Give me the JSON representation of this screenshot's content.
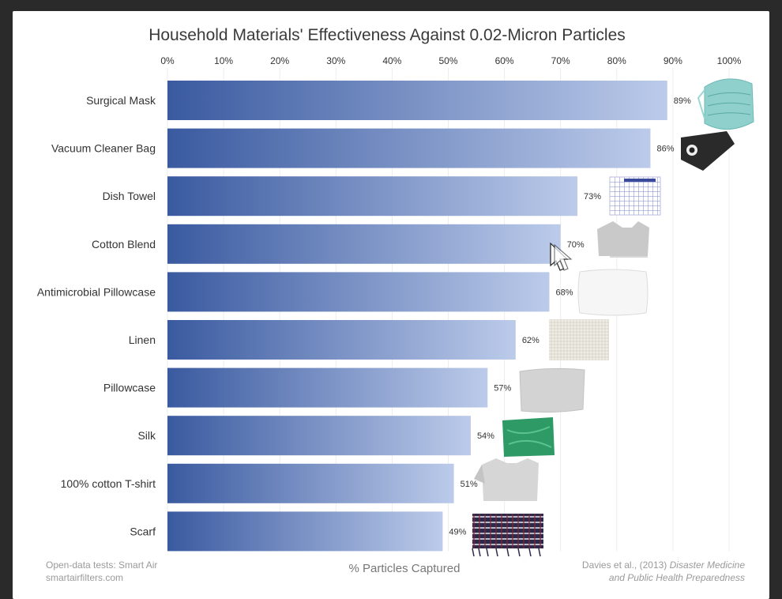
{
  "chart_data": {
    "type": "bar",
    "orientation": "horizontal",
    "title": "Household Materials' Effectiveness Against 0.02-Micron Particles",
    "xlabel": "% Particles Captured",
    "ylabel": "",
    "xlim": [
      0,
      100
    ],
    "x_ticks": [
      "0%",
      "10%",
      "20%",
      "30%",
      "40%",
      "50%",
      "60%",
      "70%",
      "80%",
      "90%",
      "100%"
    ],
    "grid": true,
    "categories": [
      "Surgical Mask",
      "Vacuum Cleaner Bag",
      "Dish Towel",
      "Cotton Blend",
      "Antimicrobial Pillowcase",
      "Linen",
      "Pillowcase",
      "Silk",
      "100% cotton T-shirt",
      "Scarf"
    ],
    "values": [
      89,
      86,
      73,
      70,
      68,
      62,
      57,
      54,
      51,
      49
    ],
    "value_labels": [
      "89%",
      "86%",
      "73%",
      "70%",
      "68%",
      "62%",
      "57%",
      "54%",
      "51%",
      "49%"
    ],
    "bar_gradient": [
      "#3a5aa0",
      "#bccbea"
    ]
  },
  "footer": {
    "source_left_line1": "Open-data tests: Smart Air",
    "source_left_line2": "smartairfilters.com",
    "citation_author": "Davies et al., (2013) ",
    "citation_journal_line1": "Disaster Medicine",
    "citation_journal_line2": "and Public Health Preparedness"
  },
  "icons": [
    "surgical-mask-icon",
    "vacuum-bag-icon",
    "dish-towel-icon",
    "cotton-shirt-icon",
    "pillow-icon",
    "linen-swatch-icon",
    "pillowcase-icon",
    "silk-swatch-icon",
    "tshirt-icon",
    "scarf-icon"
  ],
  "cursor": "mouse-pointer-icon"
}
